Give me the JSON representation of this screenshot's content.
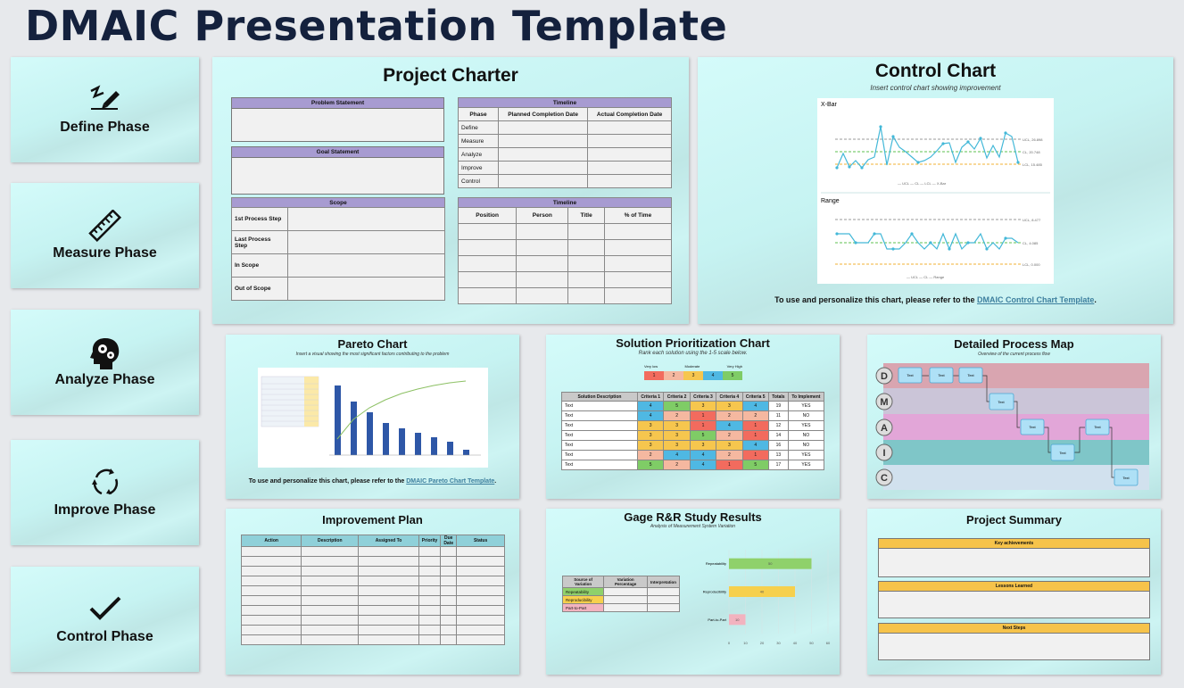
{
  "page_title": "DMAIC Presentation Template",
  "phases": [
    {
      "label": "Define Phase",
      "icon": "pen-signature-icon"
    },
    {
      "label": "Measure Phase",
      "icon": "ruler-icon"
    },
    {
      "label": "Analyze Phase",
      "icon": "head-gears-icon"
    },
    {
      "label": "Improve Phase",
      "icon": "cycle-arrows-icon"
    },
    {
      "label": "Control Phase",
      "icon": "checkmark-icon"
    }
  ],
  "charter": {
    "title": "Project Charter",
    "problem_statement": "Problem Statement",
    "goal_statement": "Goal Statement",
    "scope": {
      "header": "Scope",
      "rows": [
        "1st Process Step",
        "Last Process Step",
        "In Scope",
        "Out of Scope"
      ]
    },
    "timeline": {
      "header": "Timeline",
      "columns": [
        "Phase",
        "Planned Completion Date",
        "Actual Completion Date"
      ],
      "rows": [
        "Define",
        "Measure",
        "Analyze",
        "Improve",
        "Control"
      ]
    },
    "team": {
      "header": "Timeline",
      "columns": [
        "Position",
        "Person",
        "Title",
        "% of Time"
      ]
    }
  },
  "control_chart": {
    "title": "Control Chart",
    "subtitle": "Insert control chart showing improvement",
    "xbar_label": "X-Bar",
    "range_label": "Range",
    "xbar_legend": [
      "UCL",
      "CL",
      "LCL",
      "X-Bar"
    ],
    "range_legend": [
      "UCL",
      "CL",
      "Range"
    ],
    "xbar_ucl": "UCL, 26.898",
    "xbar_cl": "CL, 20.748",
    "xbar_lcl": "LCL, 15.485",
    "range_ucl": "UCL, 8.477",
    "range_cl": "CL, 4.085",
    "range_lcl": "LCL, 0.000",
    "note_prefix": "To use and personalize this chart, please refer to the ",
    "note_link": "DMAIC Control Chart Template",
    "note_suffix": "."
  },
  "pareto": {
    "title": "Pareto Chart",
    "subtitle": "Insert a visual showing the most significant factors contributing to the problem",
    "note_prefix": "To use and personalize this chart, please refer to the ",
    "note_link": "DMAIC Pareto Chart Template",
    "note_suffix": "."
  },
  "solution": {
    "title": "Solution Prioritization Chart",
    "subtitle": "Rank each solution using the 1-5 scale below.",
    "scale_labels": [
      "Very low",
      "Moderate",
      "Very High"
    ],
    "scale": [
      "1",
      "2",
      "3",
      "4",
      "5"
    ],
    "columns": [
      "Solution Description",
      "Criteria 1",
      "Criteria 2",
      "Criteria 3",
      "Criteria 4",
      "Criteria 5",
      "Totals",
      "To Implement"
    ],
    "rows": [
      {
        "desc": "Text",
        "scores": [
          4,
          5,
          3,
          3,
          4
        ],
        "total": "19",
        "impl": "YES"
      },
      {
        "desc": "Text",
        "scores": [
          4,
          2,
          1,
          2,
          2
        ],
        "total": "11",
        "impl": "NO"
      },
      {
        "desc": "Text",
        "scores": [
          3,
          3,
          1,
          4,
          1
        ],
        "total": "12",
        "impl": "YES"
      },
      {
        "desc": "Text",
        "scores": [
          3,
          3,
          5,
          2,
          1
        ],
        "total": "14",
        "impl": "NO"
      },
      {
        "desc": "Text",
        "scores": [
          3,
          3,
          3,
          3,
          4
        ],
        "total": "16",
        "impl": "NO"
      },
      {
        "desc": "Text",
        "scores": [
          2,
          4,
          4,
          2,
          1
        ],
        "total": "13",
        "impl": "YES"
      },
      {
        "desc": "Text",
        "scores": [
          5,
          2,
          4,
          1,
          5
        ],
        "total": "17",
        "impl": "YES"
      }
    ]
  },
  "process_map": {
    "title": "Detailed Process Map",
    "subtitle": "Overview of the current process flow",
    "lanes": [
      "D",
      "M",
      "A",
      "I",
      "C"
    ],
    "box_text": "Text"
  },
  "improvement": {
    "title": "Improvement Plan",
    "columns": [
      "Action",
      "Description",
      "Assigned To",
      "Priority",
      "Due Date",
      "Status"
    ]
  },
  "gage": {
    "title": "Gage R&R Study Results",
    "subtitle": "Analysis of Measurement System Variation",
    "columns": [
      "Source of Variation",
      "Variation Percentage",
      "Interpretation"
    ],
    "rows": [
      "Repeatability",
      "Reproducibility",
      "Part-to-Part"
    ],
    "chart_data": {
      "type": "bar",
      "orientation": "horizontal",
      "categories": [
        "Repeatability",
        "Reproducibility",
        "Part-to-Part"
      ],
      "values": [
        50,
        40,
        10
      ],
      "value_labels": [
        "50",
        "40",
        "10"
      ],
      "xlim": [
        0,
        60
      ],
      "ticks": [
        "0",
        "10",
        "20",
        "30",
        "40",
        "50",
        "60"
      ],
      "colors": [
        "#8fd16b",
        "#f6d04d",
        "#f2b3bf"
      ]
    }
  },
  "summary": {
    "title": "Project Summary",
    "sections": [
      "Key achievements",
      "Lessons Learned",
      "Next Steps"
    ]
  },
  "colors": {
    "title": "#14213d",
    "header_purple": "#a79bd1",
    "link": "#3d7f9e",
    "control_line": "#43b8d8"
  }
}
